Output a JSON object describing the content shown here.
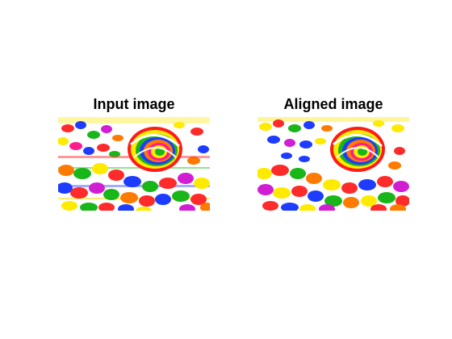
{
  "figure": {
    "panels": [
      {
        "title": "Input image",
        "image": "candy-lollipop-photo-distorted",
        "colors": [
          "#ff1a1a",
          "#ffea00",
          "#19b619",
          "#1e3cff",
          "#ff7a00",
          "#d21ed2",
          "#ffffff"
        ]
      },
      {
        "title": "Aligned image",
        "image": "candy-lollipop-photo-aligned",
        "colors": [
          "#ff1a1a",
          "#ffea00",
          "#19b619",
          "#1e3cff",
          "#ff7a00",
          "#d21ed2",
          "#ffffff"
        ]
      }
    ]
  }
}
